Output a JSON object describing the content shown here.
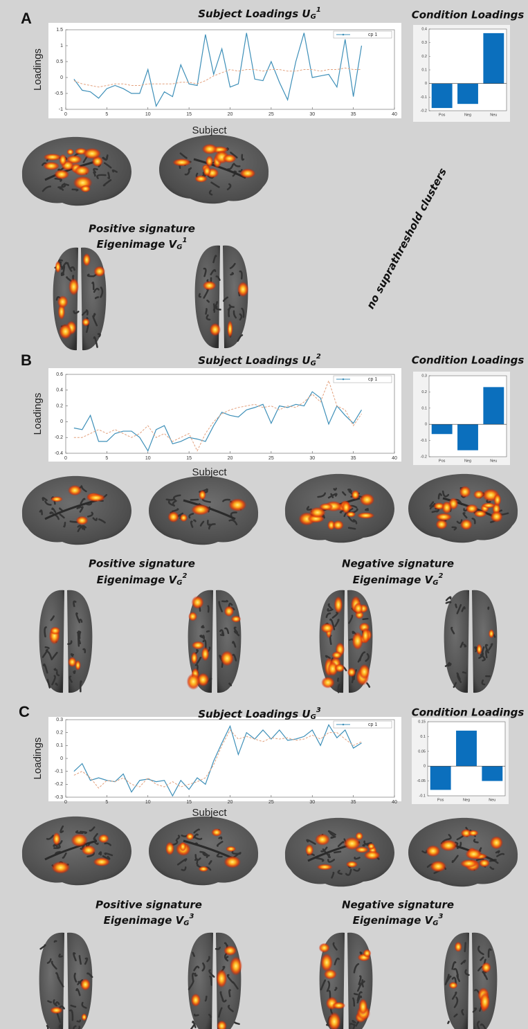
{
  "panels": [
    {
      "letter": "A",
      "signatures": [
        {
          "title": "Positive signature",
          "eigen": "Eigenimage V",
          "sub": "G",
          "sup": "1"
        }
      ],
      "note": "no suprathreshold clusters"
    },
    {
      "letter": "B",
      "signatures": [
        {
          "title": "Positive signature",
          "eigen": "Eigenimage V",
          "sub": "G",
          "sup": "2"
        },
        {
          "title": "Negative signature",
          "eigen": "Eigenimage V",
          "sub": "G",
          "sup": "2"
        }
      ]
    },
    {
      "letter": "C",
      "signatures": [
        {
          "title": "Positive signature",
          "eigen": "Eigenimage V",
          "sub": "G",
          "sup": "3"
        },
        {
          "title": "Negative signature",
          "eigen": "Eigenimage V",
          "sub": "G",
          "sup": "3"
        }
      ]
    }
  ],
  "chart_data": [
    {
      "type": "line",
      "title": "Subject Loadings U",
      "title_sub": "G",
      "title_sup": "1",
      "x_label": "Subject",
      "y_label": "Loadings",
      "x": [
        1,
        2,
        3,
        4,
        5,
        6,
        7,
        8,
        9,
        10,
        11,
        12,
        13,
        14,
        15,
        16,
        17,
        18,
        19,
        20,
        21,
        22,
        23,
        24,
        25,
        26,
        27,
        28,
        29,
        30,
        31,
        32,
        33,
        34,
        35,
        36
      ],
      "series": [
        {
          "name": "cp 1",
          "color": "#3d8fb8",
          "values": [
            -0.05,
            -0.4,
            -0.45,
            -0.65,
            -0.35,
            -0.25,
            -0.35,
            -0.5,
            -0.5,
            0.25,
            -0.9,
            -0.45,
            -0.6,
            0.4,
            -0.2,
            -0.25,
            1.35,
            0.1,
            0.9,
            -0.3,
            -0.2,
            1.4,
            -0.05,
            -0.1,
            0.5,
            -0.15,
            -0.7,
            0.5,
            1.4,
            0.0,
            0.05,
            0.1,
            -0.3,
            1.2,
            -0.6,
            1.0
          ]
        },
        {
          "color": "#e3a07c",
          "dashed": true,
          "values": [
            -0.1,
            -0.2,
            -0.25,
            -0.3,
            -0.25,
            -0.2,
            -0.2,
            -0.25,
            -0.25,
            -0.2,
            -0.2,
            -0.2,
            -0.2,
            -0.15,
            -0.15,
            -0.2,
            -0.1,
            0.05,
            0.15,
            0.25,
            0.2,
            0.25,
            0.25,
            0.2,
            0.25,
            0.25,
            0.2,
            0.2,
            0.25,
            0.25,
            0.2,
            0.25,
            0.25,
            0.3,
            0.25,
            0.25
          ]
        }
      ],
      "xlim": [
        0,
        40
      ],
      "xticks": [
        0,
        5,
        10,
        15,
        20,
        25,
        30,
        35,
        40
      ],
      "ylim": [
        -1,
        1.5
      ],
      "yticks": [
        -1,
        -0.5,
        0,
        0.5,
        1,
        1.5
      ],
      "legend": "upper right"
    },
    {
      "type": "bar",
      "title": "Condition Loadings",
      "categories": [
        "Pos",
        "Neg",
        "Neu"
      ],
      "values": [
        -0.18,
        -0.15,
        0.37
      ],
      "color": "#0b6fbd",
      "ylim": [
        -0.2,
        0.4
      ],
      "yticks": [
        -0.2,
        -0.1,
        0,
        0.1,
        0.2,
        0.3,
        0.4
      ]
    },
    {
      "type": "line",
      "title": "Subject Loadings U",
      "title_sub": "G",
      "title_sup": "2",
      "x_label": "Subject",
      "y_label": "Loadings",
      "x": [
        1,
        2,
        3,
        4,
        5,
        6,
        7,
        8,
        9,
        10,
        11,
        12,
        13,
        14,
        15,
        16,
        17,
        18,
        19,
        20,
        21,
        22,
        23,
        24,
        25,
        26,
        27,
        28,
        29,
        30,
        31,
        32,
        33,
        34,
        35,
        36
      ],
      "series": [
        {
          "name": "cp 1",
          "color": "#3d8fb8",
          "values": [
            -0.08,
            -0.1,
            0.08,
            -0.25,
            -0.25,
            -0.15,
            -0.12,
            -0.12,
            -0.2,
            -0.37,
            -0.1,
            -0.05,
            -0.28,
            -0.25,
            -0.2,
            -0.22,
            -0.25,
            -0.05,
            0.12,
            0.08,
            0.06,
            0.15,
            0.18,
            0.22,
            -0.02,
            0.2,
            0.18,
            0.22,
            0.2,
            0.38,
            0.3,
            -0.03,
            0.2,
            0.08,
            -0.02,
            0.15
          ]
        },
        {
          "color": "#e3a07c",
          "dashed": true,
          "values": [
            -0.2,
            -0.2,
            -0.15,
            -0.1,
            -0.15,
            -0.1,
            -0.15,
            -0.2,
            -0.15,
            -0.05,
            -0.2,
            -0.15,
            -0.25,
            -0.2,
            -0.15,
            -0.37,
            -0.15,
            0,
            0.1,
            0.15,
            0.18,
            0.2,
            0.22,
            0.18,
            0.2,
            0.15,
            0.2,
            0.18,
            0.25,
            0.35,
            0.25,
            0.52,
            0.2,
            0.15,
            -0.05,
            0.1
          ]
        }
      ],
      "xlim": [
        0,
        40
      ],
      "xticks": [
        0,
        5,
        10,
        15,
        20,
        25,
        30,
        35,
        40
      ],
      "ylim": [
        -0.4,
        0.6
      ],
      "yticks": [
        -0.4,
        -0.2,
        0,
        0.2,
        0.4,
        0.6
      ],
      "legend": "upper right"
    },
    {
      "type": "bar",
      "title": "Condition Loadings",
      "categories": [
        "Pos",
        "Neg",
        "Neu"
      ],
      "values": [
        -0.06,
        -0.16,
        0.23
      ],
      "color": "#0b6fbd",
      "ylim": [
        -0.2,
        0.3
      ],
      "yticks": [
        -0.2,
        -0.1,
        0,
        0.1,
        0.2,
        0.3
      ]
    },
    {
      "type": "line",
      "title": "Subject Loadings U",
      "title_sub": "G",
      "title_sup": "3",
      "x_label": "Subject",
      "y_label": "Loadings",
      "x": [
        1,
        2,
        3,
        4,
        5,
        6,
        7,
        8,
        9,
        10,
        11,
        12,
        13,
        14,
        15,
        16,
        17,
        18,
        19,
        20,
        21,
        22,
        23,
        24,
        25,
        26,
        27,
        28,
        29,
        30,
        31,
        32,
        33,
        34,
        35,
        36
      ],
      "series": [
        {
          "name": "cp 1",
          "color": "#3d8fb8",
          "values": [
            -0.1,
            -0.04,
            -0.17,
            -0.15,
            -0.17,
            -0.18,
            -0.12,
            -0.26,
            -0.17,
            -0.16,
            -0.18,
            -0.17,
            -0.29,
            -0.17,
            -0.24,
            -0.15,
            -0.2,
            -0.02,
            0.12,
            0.25,
            0.03,
            0.2,
            0.15,
            0.22,
            0.15,
            0.22,
            0.14,
            0.15,
            0.17,
            0.22,
            0.1,
            0.26,
            0.16,
            0.22,
            0.08,
            0.12
          ]
        },
        {
          "color": "#e3a07c",
          "dashed": true,
          "values": [
            -0.13,
            -0.1,
            -0.15,
            -0.23,
            -0.17,
            -0.18,
            -0.15,
            -0.2,
            -0.22,
            -0.15,
            -0.2,
            -0.22,
            -0.18,
            -0.22,
            -0.2,
            -0.18,
            -0.15,
            -0.05,
            0.1,
            0.22,
            0.15,
            0.17,
            0.15,
            0.13,
            0.16,
            0.15,
            0.16,
            0.14,
            0.15,
            0.18,
            0.15,
            0.2,
            0.2,
            0.15,
            0.1,
            0.13
          ]
        }
      ],
      "xlim": [
        0,
        40
      ],
      "xticks": [
        0,
        5,
        10,
        15,
        20,
        25,
        30,
        35,
        40
      ],
      "ylim": [
        -0.3,
        0.3
      ],
      "yticks": [
        -0.3,
        -0.2,
        -0.1,
        0,
        0.1,
        0.2,
        0.3
      ],
      "legend": "upper right"
    },
    {
      "type": "bar",
      "title": "Condition Loadings",
      "categories": [
        "Pos",
        "Neg",
        "Neu"
      ],
      "values": [
        -0.08,
        0.12,
        -0.05
      ],
      "color": "#0b6fbd",
      "ylim": [
        -0.1,
        0.15
      ],
      "yticks": [
        -0.1,
        -0.05,
        0,
        0.05,
        0.1,
        0.15
      ]
    }
  ]
}
